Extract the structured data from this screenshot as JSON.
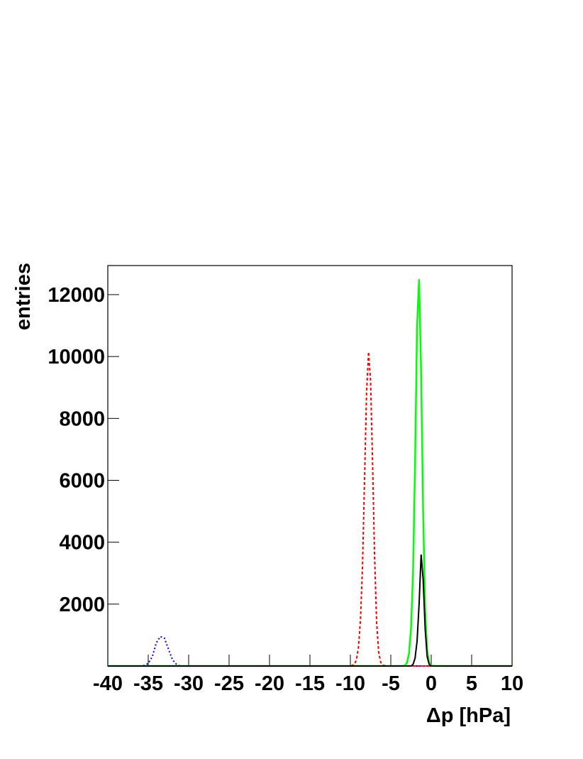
{
  "chart_data": {
    "type": "line",
    "x_label": "Δp [hPa]",
    "y_label": "entries",
    "xlim": [
      -40,
      10
    ],
    "ylim": [
      0,
      12940
    ],
    "xticks": [
      -40,
      -35,
      -30,
      -25,
      -20,
      -15,
      -10,
      -5,
      0,
      5,
      10
    ],
    "yticks": [
      2000,
      4000,
      6000,
      8000,
      10000,
      12000
    ],
    "series": [
      {
        "color": "#0000ff",
        "style": "dotted",
        "x": [
          -40,
          -36,
          -35.5,
          -35,
          -34.5,
          -34,
          -33.5,
          -33,
          -32.5,
          -32,
          -31.5,
          -31,
          10
        ],
        "values": [
          0,
          0,
          20,
          80,
          300,
          750,
          950,
          900,
          550,
          200,
          50,
          0,
          0
        ]
      },
      {
        "color": "#ff0000",
        "style": "dashed",
        "x": [
          -40,
          -10,
          -9.5,
          -9.25,
          -9,
          -8.75,
          -8.5,
          -8.25,
          -8,
          -7.75,
          -7.5,
          -7.25,
          -7,
          -6.75,
          -6.5,
          -6.25,
          -6,
          -5.5,
          10
        ],
        "values": [
          0,
          0,
          50,
          200,
          600,
          1500,
          3200,
          6000,
          8800,
          10150,
          9200,
          6500,
          3500,
          1400,
          450,
          120,
          30,
          0,
          0
        ]
      },
      {
        "color": "#00ff00",
        "style": "solid",
        "x": [
          -40,
          -3.5,
          -3.25,
          -3,
          -2.75,
          -2.5,
          -2.25,
          -2,
          -1.75,
          -1.5,
          -1.25,
          -1,
          -0.75,
          -0.5,
          -0.25,
          0,
          0.25,
          10
        ],
        "values": [
          0,
          0,
          20,
          100,
          400,
          1200,
          3000,
          6500,
          11000,
          12500,
          9500,
          5000,
          1800,
          500,
          100,
          20,
          0,
          0
        ]
      },
      {
        "color": "#000000",
        "style": "solid",
        "x": [
          -40,
          -2.5,
          -2.25,
          -2,
          -1.75,
          -1.5,
          -1.25,
          -1,
          -0.75,
          -0.5,
          -0.25,
          0,
          10
        ],
        "values": [
          0,
          0,
          50,
          250,
          800,
          2000,
          3600,
          2800,
          1200,
          300,
          50,
          0,
          0
        ]
      }
    ]
  }
}
